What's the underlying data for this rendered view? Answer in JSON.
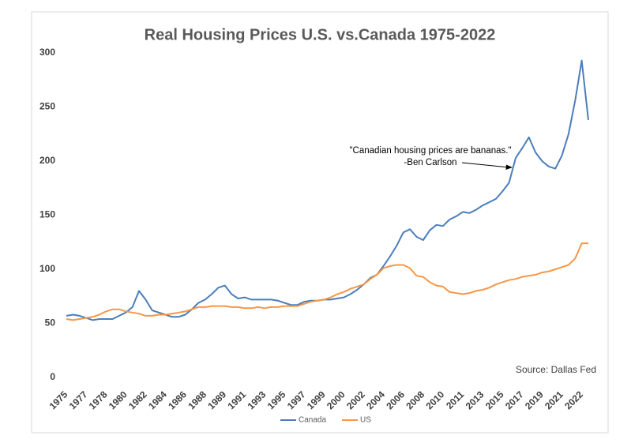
{
  "chart_data": {
    "type": "line",
    "title": "Real Housing Prices U.S. vs.Canada 1975-2022",
    "annotation": [
      "\"Canadian housing prices are bananas.\"",
      "-Ben Carlson"
    ],
    "source": "Source: Dallas Fed",
    "categories": [
      "1975",
      null,
      null,
      "1977",
      null,
      null,
      "1978",
      null,
      null,
      "1980",
      null,
      null,
      "1982",
      null,
      null,
      "1984",
      null,
      null,
      "1986",
      null,
      null,
      "1988",
      null,
      null,
      "1989",
      null,
      null,
      "1991",
      null,
      null,
      "1993",
      null,
      null,
      "1995",
      null,
      null,
      "1997",
      null,
      null,
      "1999",
      null,
      null,
      "2000",
      null,
      null,
      "2002",
      null,
      null,
      "2004",
      null,
      null,
      "2006",
      null,
      null,
      "2008",
      null,
      null,
      "2010",
      null,
      null,
      "2011",
      null,
      null,
      "2013",
      null,
      null,
      "2015",
      null,
      null,
      "2017",
      null,
      null,
      "2019",
      null,
      null,
      "2021",
      null,
      null,
      "2022",
      null
    ],
    "series": [
      {
        "name": "Canada",
        "color": "#4a7ebb",
        "values": [
          57,
          58,
          57,
          55,
          53,
          54,
          54,
          54,
          57,
          60,
          65,
          80,
          72,
          62,
          60,
          58,
          56,
          56,
          58,
          63,
          69,
          72,
          77,
          83,
          85,
          77,
          73,
          74,
          72,
          72,
          72,
          72,
          71,
          69,
          67,
          67,
          70,
          71,
          71,
          72,
          72,
          73,
          74,
          77,
          81,
          86,
          92,
          95,
          103,
          112,
          122,
          134,
          137,
          130,
          127,
          136,
          141,
          140,
          146,
          149,
          153,
          152,
          155,
          159,
          162,
          165,
          172,
          180,
          203,
          212,
          222,
          208,
          200,
          195,
          193,
          205,
          225,
          256,
          293,
          238
        ]
      },
      {
        "name": "US",
        "color": "#f79646",
        "values": [
          54,
          53,
          54,
          55,
          56,
          58,
          61,
          63,
          63,
          61,
          60,
          59,
          57,
          57,
          58,
          58,
          59,
          60,
          61,
          63,
          65,
          65,
          66,
          66,
          66,
          65,
          65,
          64,
          64,
          65,
          64,
          65,
          65,
          66,
          66,
          66,
          68,
          70,
          71,
          72,
          74,
          77,
          79,
          82,
          84,
          86,
          91,
          95,
          101,
          103,
          104,
          104,
          101,
          94,
          93,
          88,
          85,
          84,
          79,
          78,
          77,
          78,
          80,
          81,
          83,
          86,
          88,
          90,
          91,
          93,
          94,
          95,
          97,
          98,
          100,
          102,
          104,
          110,
          124,
          124
        ]
      }
    ],
    "ylim": [
      0,
      300
    ],
    "yticks": [
      0,
      50,
      100,
      150,
      200,
      250,
      300
    ],
    "grid": false,
    "legend": "bottom"
  }
}
